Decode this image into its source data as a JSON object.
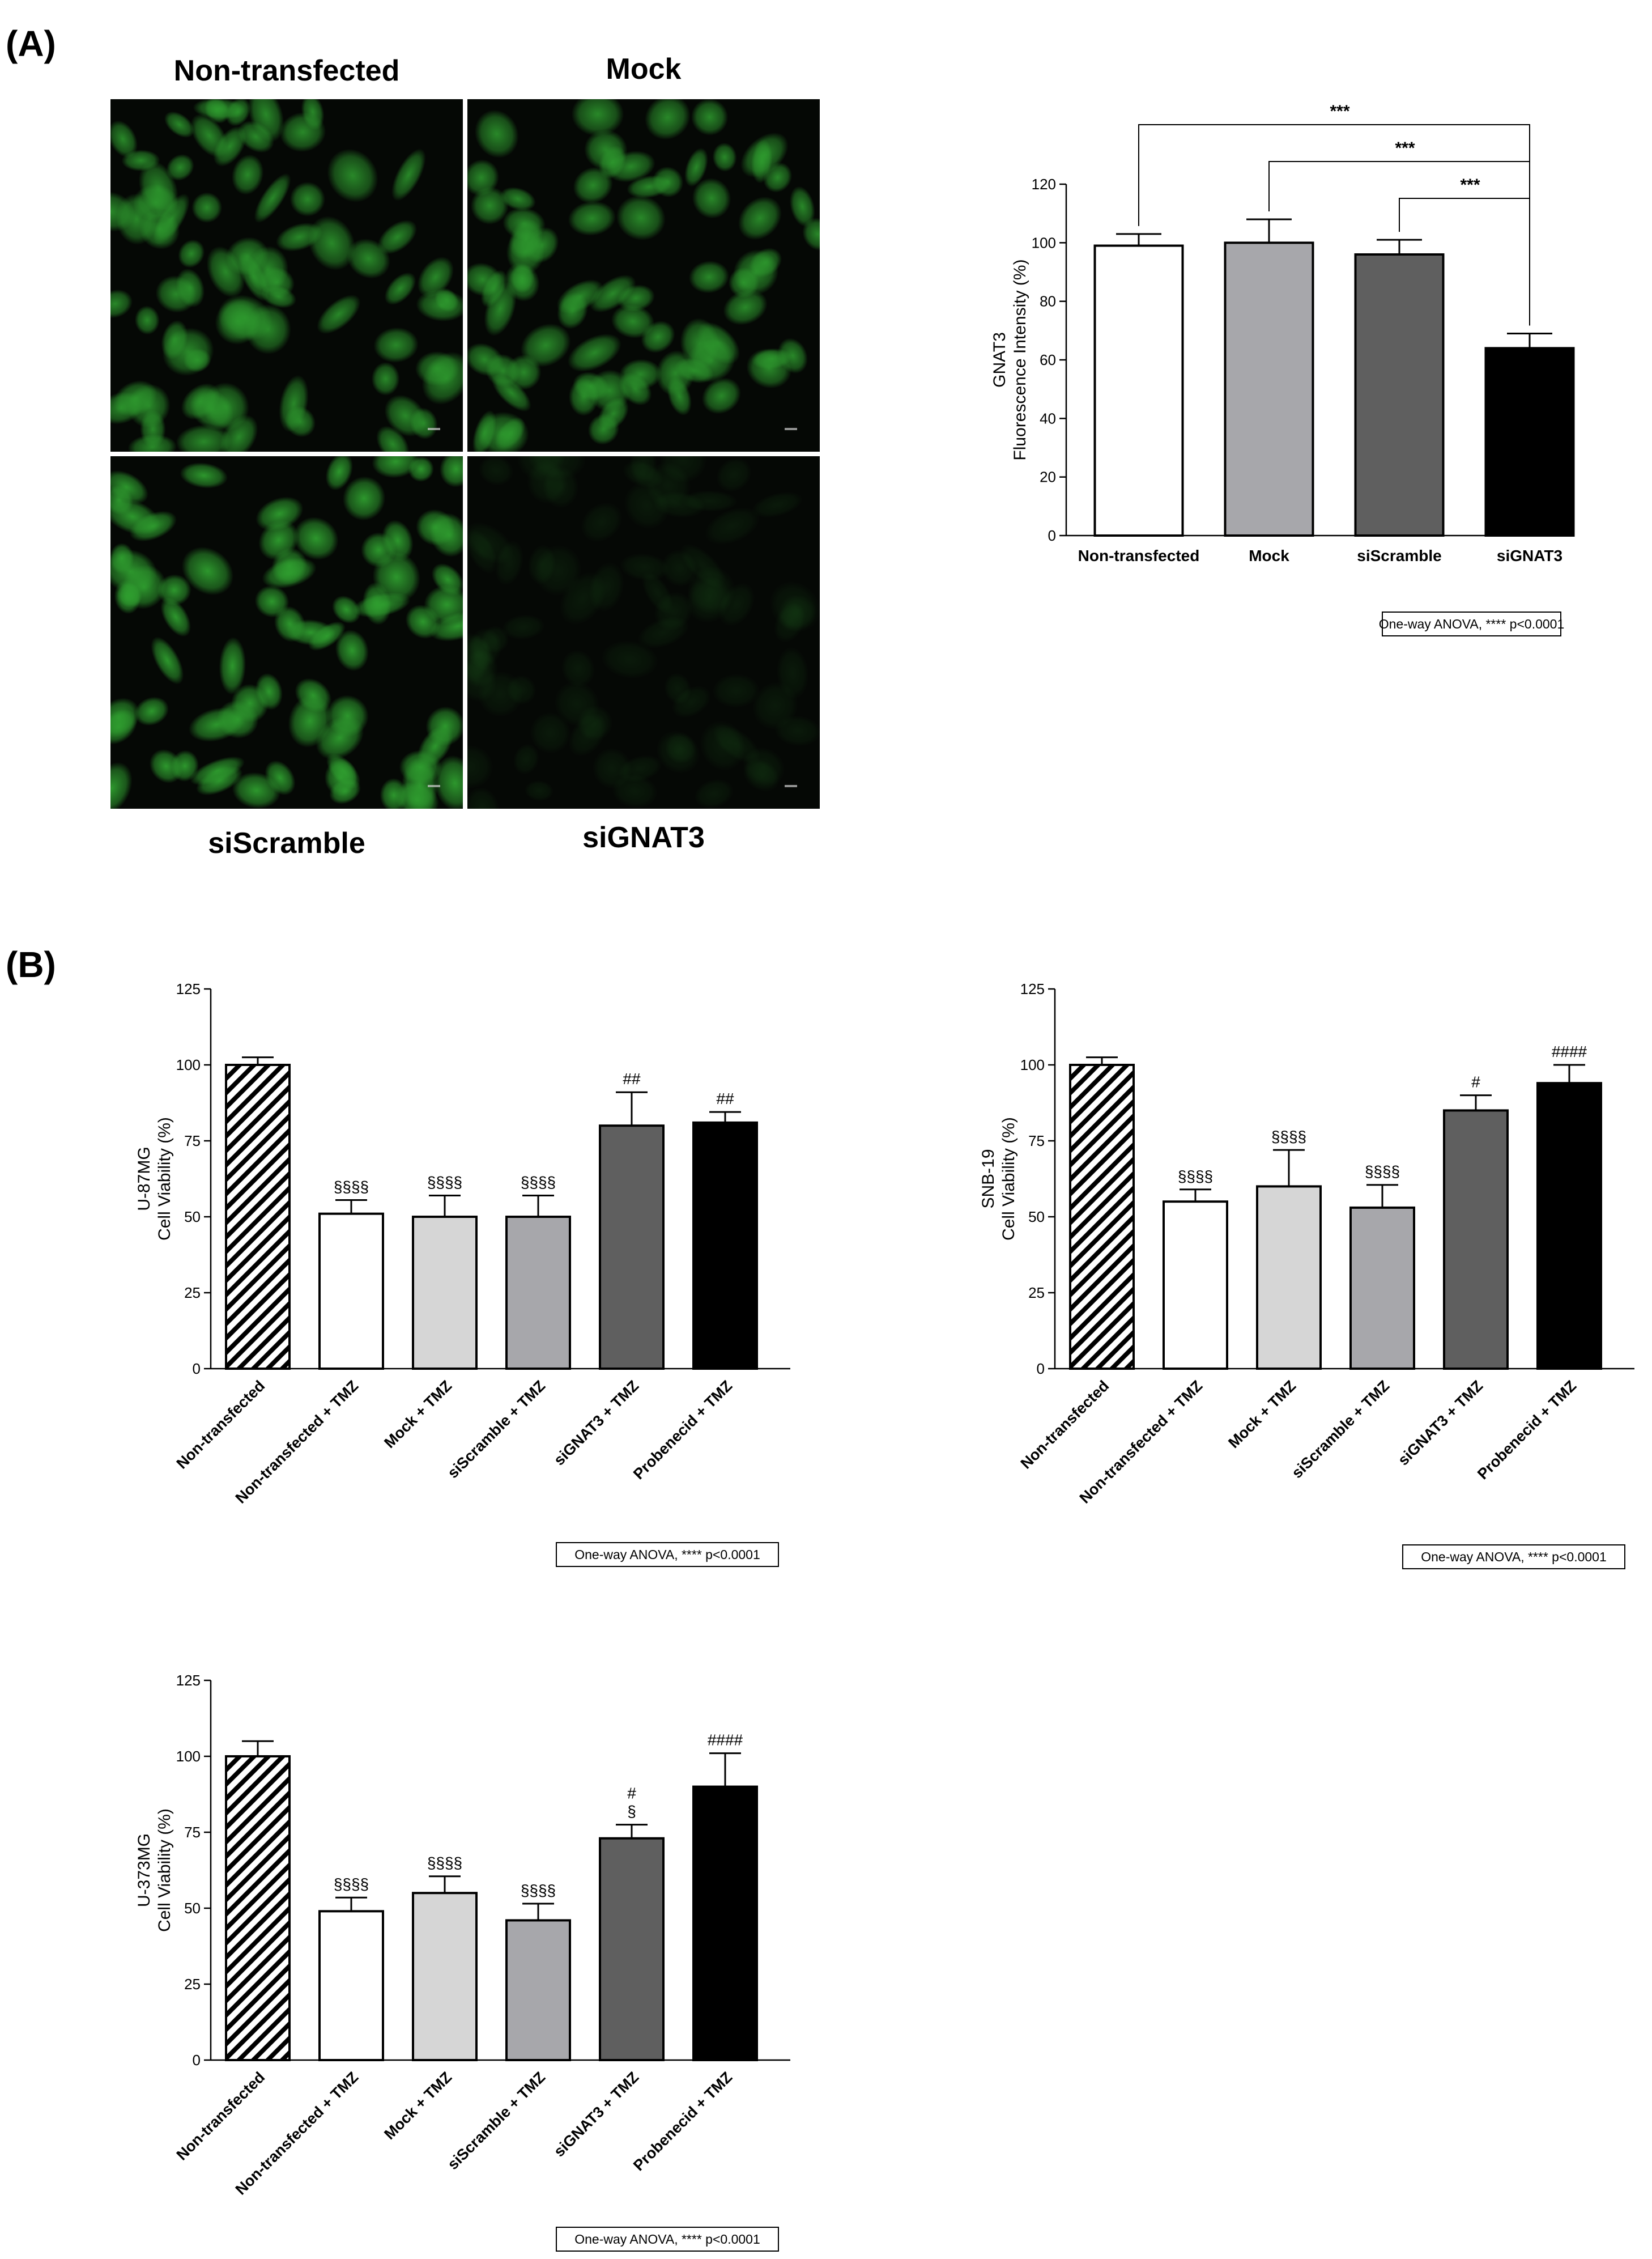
{
  "panel_a": {
    "label": "(A)",
    "micrographs": [
      {
        "title": "Non-transfected",
        "intensity": 0.85
      },
      {
        "title": "Mock",
        "intensity": 0.85
      },
      {
        "title": "siScramble",
        "intensity": 0.95
      },
      {
        "title": "siGNAT3",
        "intensity": 0.12
      }
    ],
    "micrograph_color": "#2f9e2f"
  },
  "panel_b": {
    "label": "(B)"
  },
  "chart_data": [
    {
      "type": "bar",
      "categories": [
        "Non-transfected",
        "Mock",
        "siScramble",
        "siGNAT3"
      ],
      "values": [
        99,
        100,
        96,
        64
      ],
      "errors": [
        4,
        8,
        5,
        5
      ],
      "bar_colors": [
        "#ffffff",
        "#a7a7ab",
        "#5f5f5f",
        "#000000"
      ],
      "ylabel": [
        "GNAT3",
        "Fluorescence Intensity (%)"
      ],
      "ylim": [
        0,
        120
      ],
      "yticks": [
        0,
        20,
        40,
        60,
        80,
        100,
        120
      ],
      "comparisons": [
        {
          "from": "Non-transfected",
          "to": "siGNAT3",
          "label": "***"
        },
        {
          "from": "Mock",
          "to": "siGNAT3",
          "label": "***"
        },
        {
          "from": "siScramble",
          "to": "siGNAT3",
          "label": "***"
        }
      ],
      "stat_note": "One-way ANOVA, **** p<0.0001",
      "grid": false
    },
    {
      "type": "bar",
      "categories": [
        "Non-transfected",
        "Non-transfected + TMZ",
        "Mock + TMZ",
        "siScramble + TMZ",
        "siGNAT3 + TMZ",
        "Probenecid + TMZ"
      ],
      "values": [
        100,
        51,
        50,
        50,
        80,
        81
      ],
      "errors": [
        2.5,
        4.5,
        7,
        7,
        11,
        3.5
      ],
      "marks": [
        "",
        "§§§§",
        "§§§§",
        "§§§§",
        "##",
        "##"
      ],
      "bar_colors": [
        "hatch",
        "#ffffff",
        "#d6d6d6",
        "#a7a7ab",
        "#5f5f5f",
        "#000000"
      ],
      "ylabel": [
        "U-87MG",
        "Cell Viability (%)"
      ],
      "ylim": [
        0,
        125
      ],
      "yticks": [
        0,
        25,
        50,
        75,
        100,
        125
      ],
      "stat_note": "One-way ANOVA, **** p<0.0001",
      "grid": false
    },
    {
      "type": "bar",
      "categories": [
        "Non-transfected",
        "Non-transfected + TMZ",
        "Mock + TMZ",
        "siScramble + TMZ",
        "siGNAT3 + TMZ",
        "Probenecid + TMZ"
      ],
      "values": [
        100,
        55,
        60,
        53,
        85,
        94
      ],
      "errors": [
        2.5,
        4,
        12,
        7.5,
        5,
        6
      ],
      "marks": [
        "",
        "§§§§",
        "§§§§",
        "§§§§",
        "#",
        "####"
      ],
      "bar_colors": [
        "hatch",
        "#ffffff",
        "#d6d6d6",
        "#a7a7ab",
        "#5f5f5f",
        "#000000"
      ],
      "ylabel": [
        "SNB-19",
        "Cell Viability (%)"
      ],
      "ylim": [
        0,
        125
      ],
      "yticks": [
        0,
        25,
        50,
        75,
        100,
        125
      ],
      "stat_note": "One-way ANOVA, **** p<0.0001",
      "grid": false
    },
    {
      "type": "bar",
      "categories": [
        "Non-transfected",
        "Non-transfected + TMZ",
        "Mock + TMZ",
        "siScramble + TMZ",
        "siGNAT3 + TMZ",
        "Probenecid + TMZ"
      ],
      "values": [
        100,
        49,
        55,
        46,
        73,
        90
      ],
      "errors": [
        5,
        4.5,
        5.5,
        5.5,
        4.5,
        11
      ],
      "marks": [
        "",
        "§§§§",
        "§§§§",
        "§§§§",
        "#\n§",
        "####"
      ],
      "bar_colors": [
        "hatch",
        "#ffffff",
        "#d6d6d6",
        "#a7a7ab",
        "#5f5f5f",
        "#000000"
      ],
      "ylabel": [
        "U-373MG",
        "Cell Viability (%)"
      ],
      "ylim": [
        0,
        125
      ],
      "yticks": [
        0,
        25,
        50,
        75,
        100,
        125
      ],
      "stat_note": "One-way ANOVA, **** p<0.0001",
      "grid": false
    }
  ]
}
